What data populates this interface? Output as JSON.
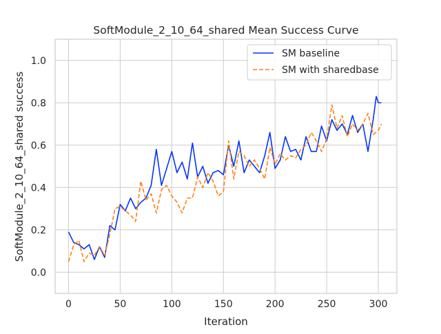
{
  "colors": {
    "background": "#ffffff",
    "grid": "#cccccc",
    "axes_edge": "#cccccc",
    "series_baseline": "#0033ff",
    "series_shared": "#ff7f0e"
  },
  "chart_data": {
    "type": "line",
    "title": "SoftModule_2_10_64_shared Mean Success Curve",
    "xlabel": "Iteration",
    "ylabel": "SoftModule_2_10_64_shared success",
    "xlim": [
      -13,
      318
    ],
    "ylim": [
      -0.1,
      1.1
    ],
    "xticks": [
      0,
      50,
      100,
      150,
      200,
      250,
      300
    ],
    "yticks": [
      0.0,
      0.2,
      0.4,
      0.6,
      0.8,
      1.0
    ],
    "ytick_labels": [
      "0.0",
      "0.2",
      "0.4",
      "0.6",
      "0.8",
      "1.0"
    ],
    "grid": true,
    "legend_position": "top-right",
    "series": [
      {
        "name": "SM baseline",
        "style": "solid",
        "x": [
          0,
          5,
          10,
          15,
          20,
          25,
          30,
          35,
          40,
          45,
          50,
          55,
          60,
          65,
          70,
          75,
          80,
          85,
          90,
          95,
          100,
          105,
          110,
          115,
          120,
          125,
          130,
          135,
          140,
          145,
          150,
          155,
          160,
          165,
          170,
          175,
          180,
          185,
          190,
          195,
          200,
          205,
          210,
          215,
          220,
          225,
          230,
          235,
          240,
          245,
          250,
          255,
          260,
          265,
          270,
          275,
          280,
          285,
          290,
          295,
          298,
          300,
          303
        ],
        "y": [
          0.19,
          0.14,
          0.13,
          0.11,
          0.13,
          0.06,
          0.12,
          0.07,
          0.22,
          0.2,
          0.32,
          0.29,
          0.35,
          0.3,
          0.33,
          0.35,
          0.41,
          0.58,
          0.41,
          0.49,
          0.57,
          0.47,
          0.52,
          0.44,
          0.61,
          0.45,
          0.5,
          0.42,
          0.47,
          0.48,
          0.46,
          0.6,
          0.5,
          0.62,
          0.47,
          0.53,
          0.5,
          0.47,
          0.55,
          0.66,
          0.49,
          0.53,
          0.64,
          0.57,
          0.58,
          0.53,
          0.64,
          0.57,
          0.57,
          0.69,
          0.62,
          0.72,
          0.67,
          0.7,
          0.65,
          0.74,
          0.66,
          0.7,
          0.57,
          0.72,
          0.83,
          0.8,
          0.8
        ]
      },
      {
        "name": "SM with sharedbase",
        "style": "dashed",
        "x": [
          0,
          5,
          10,
          15,
          20,
          25,
          30,
          35,
          40,
          45,
          50,
          55,
          60,
          65,
          70,
          75,
          80,
          85,
          90,
          95,
          100,
          105,
          110,
          115,
          120,
          125,
          130,
          135,
          140,
          145,
          150,
          155,
          160,
          165,
          170,
          175,
          180,
          185,
          190,
          195,
          200,
          205,
          210,
          215,
          220,
          225,
          230,
          235,
          240,
          245,
          250,
          255,
          260,
          265,
          270,
          275,
          280,
          285,
          290,
          295,
          300,
          303
        ],
        "y": [
          0.05,
          0.13,
          0.15,
          0.05,
          0.09,
          0.08,
          0.12,
          0.08,
          0.18,
          0.3,
          0.31,
          0.29,
          0.27,
          0.24,
          0.43,
          0.34,
          0.37,
          0.28,
          0.39,
          0.41,
          0.36,
          0.33,
          0.28,
          0.35,
          0.35,
          0.45,
          0.4,
          0.47,
          0.43,
          0.36,
          0.38,
          0.62,
          0.44,
          0.57,
          0.55,
          0.5,
          0.53,
          0.49,
          0.44,
          0.59,
          0.51,
          0.56,
          0.53,
          0.55,
          0.54,
          0.58,
          0.6,
          0.66,
          0.62,
          0.57,
          0.63,
          0.79,
          0.68,
          0.74,
          0.64,
          0.7,
          0.67,
          0.7,
          0.75,
          0.65,
          0.67,
          0.7
        ]
      }
    ]
  }
}
